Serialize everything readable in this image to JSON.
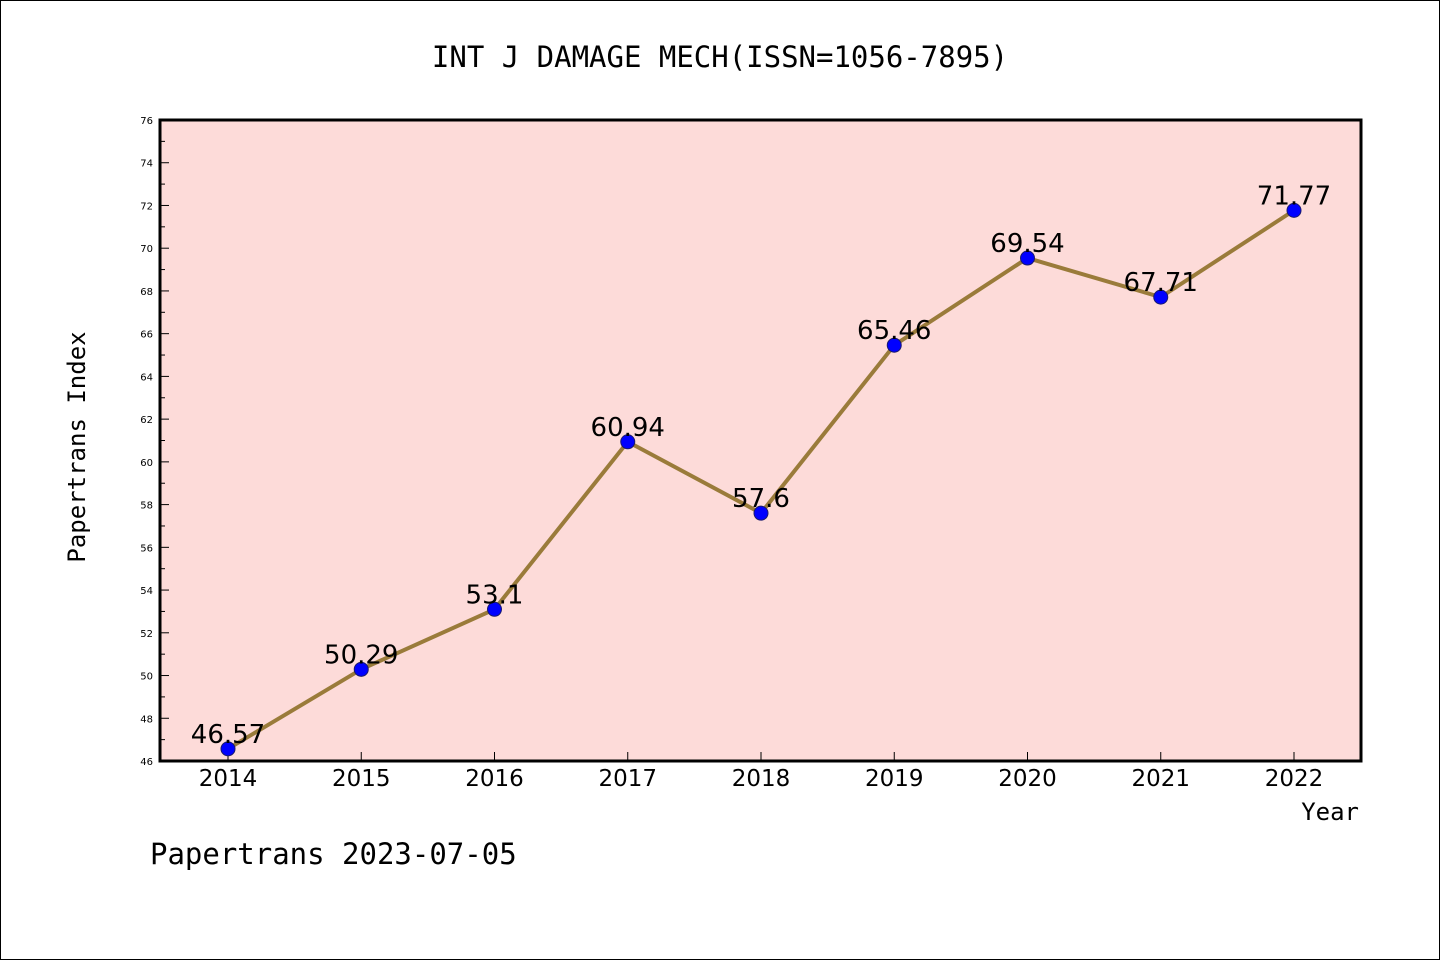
{
  "footer_text": "Papertrans 2023-07-05",
  "colors": {
    "background": "#ffffff",
    "plot_background": "#fddbd9",
    "line": "#9a7b3a",
    "marker_fill": "#0000ff",
    "marker_stroke": "#1a1a6e"
  },
  "chart_data": {
    "type": "line",
    "title": "INT J DAMAGE MECH(ISSN=1056-7895)",
    "xlabel": "Year",
    "ylabel": "Papertrans Index",
    "categories": [
      "2014",
      "2015",
      "2016",
      "2017",
      "2018",
      "2019",
      "2020",
      "2021",
      "2022"
    ],
    "series": [
      {
        "values": [
          46.57,
          50.29,
          53.1,
          60.94,
          57.6,
          65.46,
          69.54,
          67.71,
          71.77
        ],
        "labels": [
          "46.57",
          "50.29",
          "53.1",
          "60.94",
          "57.6",
          "65.46",
          "69.54",
          "67.71",
          "71.77"
        ]
      }
    ],
    "ylim": [
      46,
      76
    ],
    "yticks": [
      46,
      48,
      50,
      52,
      54,
      56,
      58,
      60,
      62,
      64,
      66,
      68,
      70,
      72,
      74,
      76
    ],
    "grid": false,
    "legend": "none"
  }
}
